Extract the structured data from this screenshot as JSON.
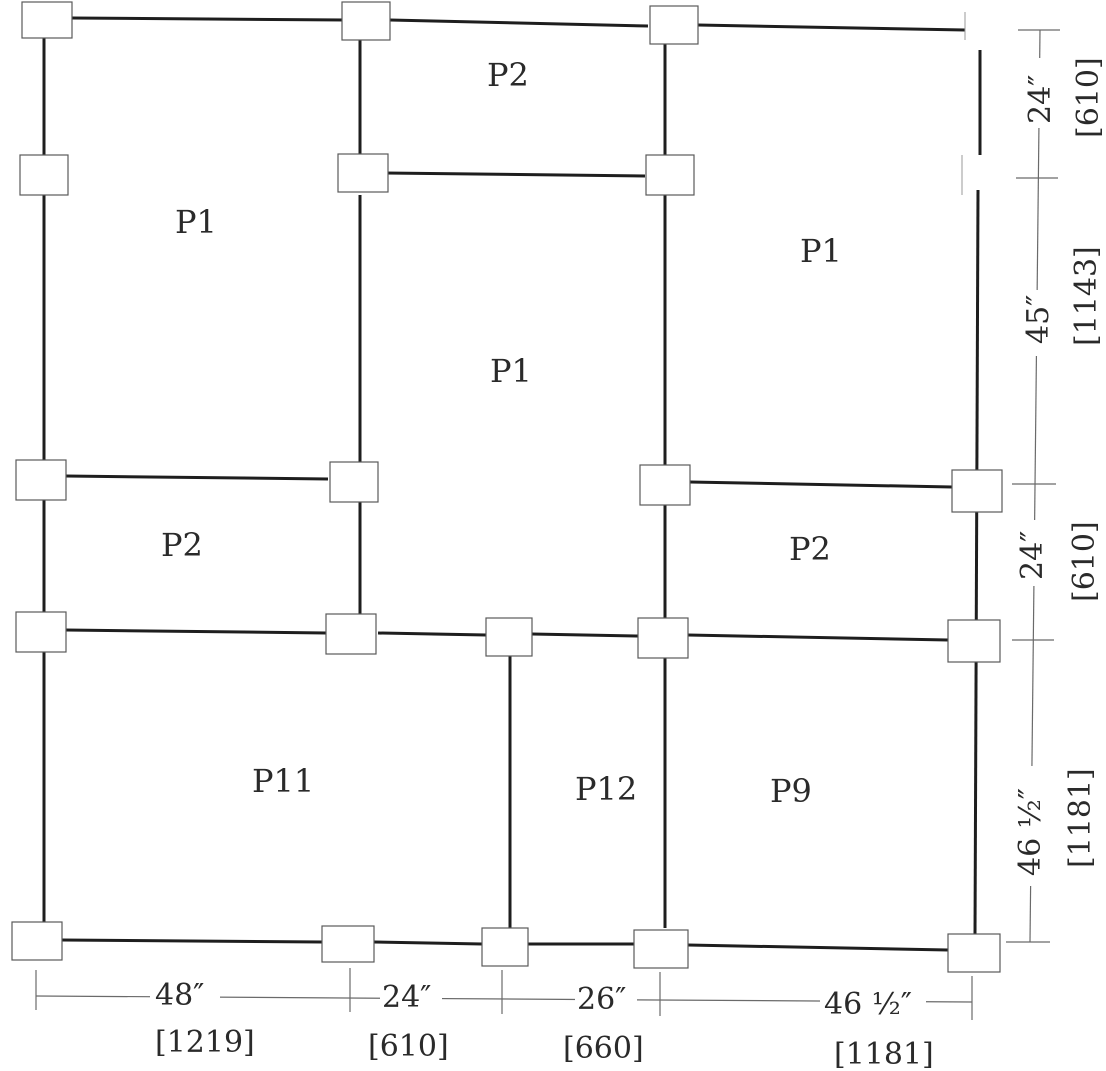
{
  "panels": [
    {
      "id": "p2-top",
      "label": "P2"
    },
    {
      "id": "p1-left",
      "label": "P1"
    },
    {
      "id": "p1-center",
      "label": "P1"
    },
    {
      "id": "p1-right",
      "label": "P1"
    },
    {
      "id": "p2-left",
      "label": "P2"
    },
    {
      "id": "p2-right",
      "label": "P2"
    },
    {
      "id": "p11",
      "label": "P11"
    },
    {
      "id": "p12",
      "label": "P12"
    },
    {
      "id": "p9",
      "label": "P9"
    }
  ],
  "dimensions": {
    "horizontal": [
      {
        "imperial": "48″",
        "metric": "[1219]"
      },
      {
        "imperial": "24″",
        "metric": "[610]"
      },
      {
        "imperial": "26″",
        "metric": "[660]"
      },
      {
        "imperial": "46 ½″",
        "metric": "[1181]"
      }
    ],
    "vertical": [
      {
        "imperial": "24″",
        "metric": "[610]"
      },
      {
        "imperial": "45″",
        "metric": "[1143]"
      },
      {
        "imperial": "24″",
        "metric": "[610]"
      },
      {
        "imperial": "46 ½″",
        "metric": "[1181]"
      }
    ]
  }
}
